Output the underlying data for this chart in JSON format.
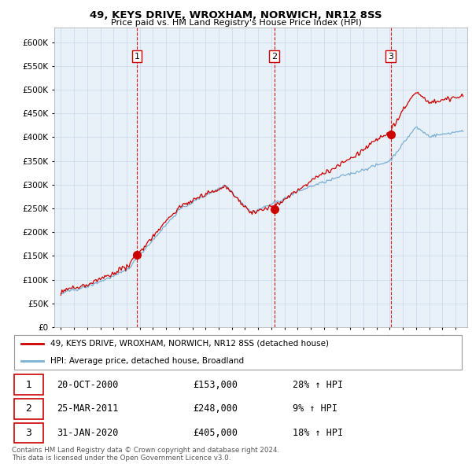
{
  "title": "49, KEYS DRIVE, WROXHAM, NORWICH, NR12 8SS",
  "subtitle": "Price paid vs. HM Land Registry's House Price Index (HPI)",
  "ylim": [
    0,
    620000
  ],
  "yticks": [
    0,
    50000,
    100000,
    150000,
    200000,
    250000,
    300000,
    350000,
    400000,
    450000,
    500000,
    550000,
    600000
  ],
  "sale_times": [
    2000.79,
    2011.23,
    2020.08
  ],
  "sale_prices": [
    153000,
    248000,
    405000
  ],
  "sale_labels": [
    "1",
    "2",
    "3"
  ],
  "sale_color": "#cc0000",
  "hpi_color": "#7bafd4",
  "chart_bg": "#e8f0f8",
  "dashed_line_color": "#cc0000",
  "legend_label_red": "49, KEYS DRIVE, WROXHAM, NORWICH, NR12 8SS (detached house)",
  "legend_label_blue": "HPI: Average price, detached house, Broadland",
  "table_rows": [
    [
      "1",
      "20-OCT-2000",
      "£153,000",
      "28% ↑ HPI"
    ],
    [
      "2",
      "25-MAR-2011",
      "£248,000",
      "9% ↑ HPI"
    ],
    [
      "3",
      "31-JAN-2020",
      "£405,000",
      "18% ↑ HPI"
    ]
  ],
  "footnote": "Contains HM Land Registry data © Crown copyright and database right 2024.\nThis data is licensed under the Open Government Licence v3.0.",
  "background_color": "#ffffff",
  "grid_color": "#c8d8e8"
}
